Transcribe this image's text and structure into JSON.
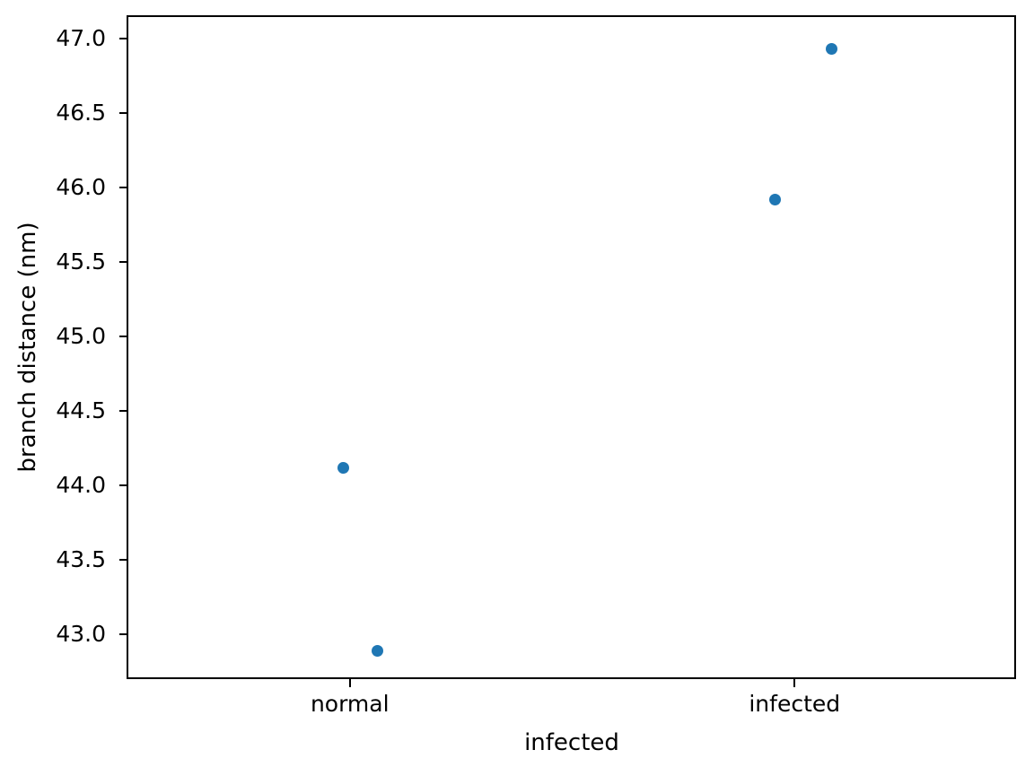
{
  "chart_data": {
    "type": "scatter",
    "subtype": "strip-plot",
    "title": "",
    "xlabel": "infected",
    "ylabel": "branch distance (nm)",
    "categories": [
      "normal",
      "infected"
    ],
    "yticks": [
      "43.0",
      "43.5",
      "44.0",
      "44.5",
      "45.0",
      "45.5",
      "46.0",
      "46.5",
      "47.0"
    ],
    "ylim": [
      42.7,
      47.15
    ],
    "grid": false,
    "legend": false,
    "marker_color": "#1f77b4",
    "axis_color": "#000000",
    "background_color": "#ffffff",
    "points": [
      {
        "category": "normal",
        "value": 44.12,
        "offset": -0.014
      },
      {
        "category": "normal",
        "value": 42.89,
        "offset": 0.063
      },
      {
        "category": "infected",
        "value": 45.92,
        "offset": -0.044
      },
      {
        "category": "infected",
        "value": 46.93,
        "offset": 0.083
      }
    ]
  }
}
